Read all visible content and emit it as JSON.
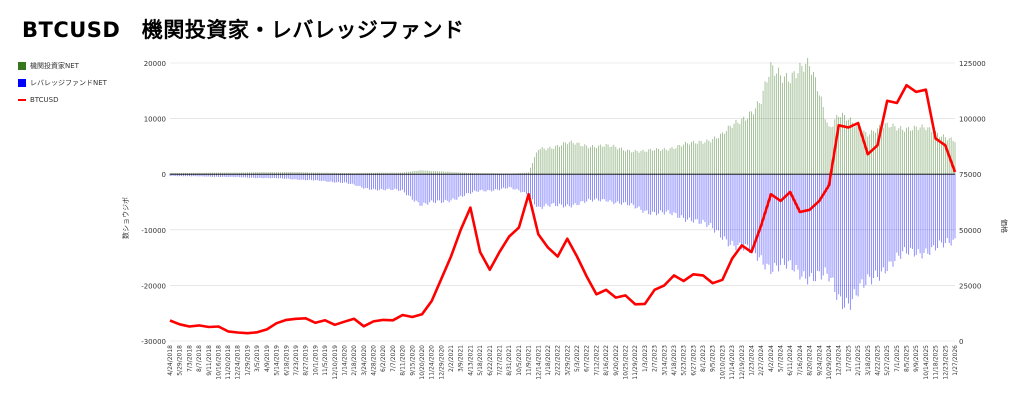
{
  "page": {
    "title": "BTCUSD　機関投資家・レバレッジファンド"
  },
  "legend": [
    {
      "label": "機関投資家NET",
      "color": "#38761d",
      "kind": "bar"
    },
    {
      "label": "レバレッジファンドNET",
      "color": "#0000ff",
      "kind": "bar"
    },
    {
      "label": "BTCUSD",
      "color": "#ff0000",
      "kind": "line"
    }
  ],
  "chart_data": {
    "type": "bar",
    "title": "BTCUSD　機関投資家・レバレッジファンド",
    "ylabel": "数ショウジボ",
    "y2label": "価格",
    "ylim": [
      -30000,
      20000
    ],
    "y2lim": [
      0,
      125000
    ],
    "yticks": [
      20000,
      10000,
      0,
      -10000,
      -20000,
      -30000
    ],
    "y2ticks": [
      125000,
      100000,
      75000,
      50000,
      25000,
      0
    ],
    "ytick_labels": [
      "20000",
      "10000",
      "0",
      "-10000",
      "-20000",
      "-30000"
    ],
    "y2tick_labels": [
      "125000",
      "100000",
      "75000",
      "50000",
      "25000",
      "0"
    ],
    "grid": true,
    "legend_position": "left",
    "x_tick_labels": [
      "4/24/2018",
      "5/29/2018",
      "7/3/2018",
      "8/7/2018",
      "9/11/2018",
      "10/16/2018",
      "11/20/2018",
      "12/24/2018",
      "1/29/2019",
      "3/5/2019",
      "4/9/2019",
      "5/14/2019",
      "6/18/2019",
      "7/23/2019",
      "8/27/2019",
      "10/1/2019",
      "11/5/2019",
      "12/10/2019",
      "1/14/2020",
      "2/18/2020",
      "3/24/2020",
      "4/28/2020",
      "6/2/2020",
      "7/7/2020",
      "8/11/2020",
      "9/15/2020",
      "10/20/2020",
      "11/24/2020",
      "12/29/2020",
      "2/2/2021",
      "3/9/2021",
      "4/13/2021",
      "5/18/2021",
      "6/22/2021",
      "7/27/2021",
      "8/31/2021",
      "10/5/2021",
      "11/9/2021",
      "12/14/2021",
      "1/18/2022",
      "2/22/2022",
      "3/29/2022",
      "5/3/2022",
      "6/7/2022",
      "7/12/2022",
      "8/16/2022",
      "9/20/2022",
      "10/25/2022",
      "11/29/2022",
      "1/3/2023",
      "2/7/2023",
      "3/14/2023",
      "4/18/2023",
      "5/23/2023",
      "6/27/2023",
      "8/1/2023",
      "9/5/2023",
      "10/10/2023",
      "11/14/2023",
      "12/19/2023",
      "1/23/2024",
      "2/27/2024",
      "4/2/2024",
      "5/7/2024",
      "6/11/2024",
      "7/16/2024",
      "8/20/2024",
      "9/24/2024",
      "10/29/2024",
      "12/3/2024",
      "1/7/2025",
      "2/11/2025",
      "3/18/2025",
      "4/22/2025",
      "5/27/2025",
      "7/1/2025",
      "8/5/2025",
      "9/9/2025",
      "10/14/2025",
      "11/18/2025",
      "12/23/2025",
      "1/27/2026"
    ],
    "series": [
      {
        "name": "機関投資家NET",
        "color": "#38761d",
        "x": [
          "4/24/2018",
          "11/20/2018",
          "6/18/2019",
          "1/14/2020",
          "8/11/2020",
          "10/20/2020",
          "12/29/2020",
          "3/9/2021",
          "5/18/2021",
          "8/31/2021",
          "11/9/2021",
          "12/14/2021",
          "3/29/2022",
          "8/16/2022",
          "1/3/2023",
          "6/27/2023",
          "10/10/2023",
          "12/19/2023",
          "2/27/2024",
          "4/2/2024",
          "6/11/2024",
          "8/20/2024",
          "9/24/2024",
          "10/29/2024",
          "12/3/2024",
          "1/7/2025",
          "3/18/2025",
          "5/27/2025",
          "8/5/2025",
          "10/14/2025",
          "12/23/2025",
          "1/27/2026"
        ],
        "values": [
          200,
          300,
          400,
          200,
          300,
          700,
          500,
          300,
          200,
          100,
          300,
          4500,
          5500,
          5000,
          4000,
          5500,
          7000,
          10000,
          13000,
          18500,
          18000,
          19000,
          15000,
          8500,
          10500,
          9500,
          7500,
          8500,
          8500,
          8000,
          7000,
          6000
        ]
      },
      {
        "name": "レバレッジファンドNET",
        "color": "#0000ff",
        "x": [
          "4/24/2018",
          "11/20/2018",
          "6/18/2019",
          "1/14/2020",
          "3/24/2020",
          "8/11/2020",
          "10/20/2020",
          "12/29/2020",
          "3/9/2021",
          "5/18/2021",
          "8/31/2021",
          "11/9/2021",
          "12/14/2021",
          "3/29/2022",
          "8/16/2022",
          "1/3/2023",
          "6/27/2023",
          "10/10/2023",
          "12/19/2023",
          "2/27/2024",
          "4/2/2024",
          "6/11/2024",
          "8/20/2024",
          "10/29/2024",
          "12/3/2024",
          "1/7/2025",
          "3/18/2025",
          "5/27/2025",
          "8/5/2025",
          "10/14/2025",
          "12/23/2025",
          "1/27/2026"
        ],
        "values": [
          -300,
          -500,
          -800,
          -1500,
          -2500,
          -3000,
          -5500,
          -5000,
          -4000,
          -3000,
          -2500,
          -3500,
          -6000,
          -5500,
          -4500,
          -6500,
          -8000,
          -11000,
          -13500,
          -15000,
          -16500,
          -17000,
          -18000,
          -19000,
          -22000,
          -22500,
          -20000,
          -16000,
          -14500,
          -13500,
          -13000,
          -12000
        ]
      },
      {
        "name": "BTCUSD",
        "color": "#ff0000",
        "axis": "right",
        "x": [
          "4/24/2018",
          "5/29/2018",
          "7/3/2018",
          "8/7/2018",
          "9/11/2018",
          "10/16/2018",
          "11/20/2018",
          "12/24/2018",
          "1/29/2019",
          "3/5/2019",
          "4/9/2019",
          "5/14/2019",
          "6/18/2019",
          "7/23/2019",
          "8/27/2019",
          "10/1/2019",
          "11/5/2019",
          "12/10/2019",
          "1/14/2020",
          "2/18/2020",
          "3/24/2020",
          "4/28/2020",
          "6/2/2020",
          "7/7/2020",
          "8/11/2020",
          "9/15/2020",
          "10/20/2020",
          "11/24/2020",
          "12/29/2020",
          "2/2/2021",
          "3/9/2021",
          "4/13/2021",
          "5/18/2021",
          "6/22/2021",
          "7/27/2021",
          "8/31/2021",
          "10/5/2021",
          "11/9/2021",
          "12/14/2021",
          "1/18/2022",
          "2/22/2022",
          "3/29/2022",
          "5/3/2022",
          "6/7/2022",
          "7/12/2022",
          "8/16/2022",
          "9/20/2022",
          "10/25/2022",
          "11/29/2022",
          "1/3/2023",
          "2/7/2023",
          "3/14/2023",
          "4/18/2023",
          "5/23/2023",
          "6/27/2023",
          "8/1/2023",
          "9/5/2023",
          "10/10/2023",
          "11/14/2023",
          "12/19/2023",
          "1/23/2024",
          "2/27/2024",
          "4/2/2024",
          "5/7/2024",
          "6/11/2024",
          "7/16/2024",
          "8/20/2024",
          "9/24/2024",
          "10/29/2024",
          "12/3/2024",
          "1/7/2025",
          "2/11/2025",
          "3/18/2025",
          "4/22/2025",
          "5/27/2025",
          "7/1/2025",
          "8/5/2025",
          "9/9/2025",
          "10/14/2025",
          "11/18/2025",
          "12/23/2025",
          "1/27/2026"
        ],
        "values": [
          9200,
          7500,
          6500,
          7000,
          6300,
          6500,
          4300,
          3800,
          3500,
          3900,
          5200,
          8000,
          9500,
          10000,
          10200,
          8200,
          9300,
          7300,
          8700,
          10000,
          6600,
          8800,
          9500,
          9300,
          11700,
          10800,
          12000,
          18000,
          28000,
          38000,
          50000,
          60000,
          40000,
          32000,
          40000,
          47000,
          51000,
          66000,
          48000,
          42000,
          38000,
          46000,
          38000,
          29000,
          21000,
          23000,
          19500,
          20500,
          16500,
          16700,
          23000,
          25000,
          29500,
          27000,
          30000,
          29500,
          26000,
          27500,
          37000,
          43000,
          40000,
          52000,
          66000,
          63000,
          67000,
          58000,
          59000,
          63000,
          70000,
          97000,
          96000,
          98000,
          84000,
          88000,
          108000,
          107000,
          115000,
          112000,
          113000,
          91000,
          88000,
          76000
        ]
      }
    ]
  }
}
